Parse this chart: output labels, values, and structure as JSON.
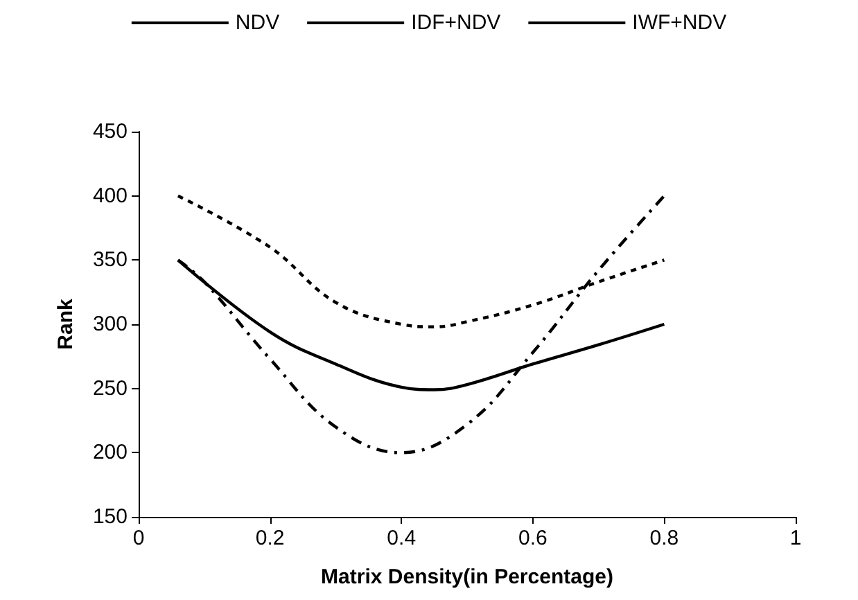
{
  "chart_data": {
    "type": "line",
    "xlabel": "Matrix Density(in Percentage)",
    "ylabel": "Rank",
    "xlim": [
      0,
      1
    ],
    "xticks": [
      0,
      0.2,
      0.4,
      0.6,
      0.8,
      1
    ],
    "ylim": [
      150,
      450
    ],
    "yticks": [
      150,
      200,
      250,
      300,
      350,
      400,
      450
    ],
    "grid": false,
    "legend": "top",
    "marker": "none",
    "series": [
      {
        "name": "NDV",
        "color": "#000000",
        "line_style": "dashed",
        "x": [
          0.06,
          0.1,
          0.2,
          0.3,
          0.4,
          0.5,
          0.6,
          0.7,
          0.8
        ],
        "values": [
          350,
          333,
          273,
          220,
          200,
          222,
          278,
          342,
          400
        ]
      },
      {
        "name": "IDF+NDV",
        "color": "#000000",
        "line_style": "solid",
        "x": [
          0.06,
          0.2,
          0.3,
          0.4,
          0.45,
          0.5,
          0.6,
          0.7,
          0.8
        ],
        "values": [
          350,
          294,
          269,
          251,
          249,
          253,
          269,
          284,
          300
        ]
      },
      {
        "name": "IWF+NDV",
        "color": "#000000",
        "line_style": "dotted",
        "x": [
          0.06,
          0.2,
          0.3,
          0.4,
          0.45,
          0.5,
          0.6,
          0.7,
          0.8
        ],
        "values": [
          400,
          360,
          317,
          300,
          298,
          302,
          315,
          333,
          350
        ]
      }
    ]
  }
}
